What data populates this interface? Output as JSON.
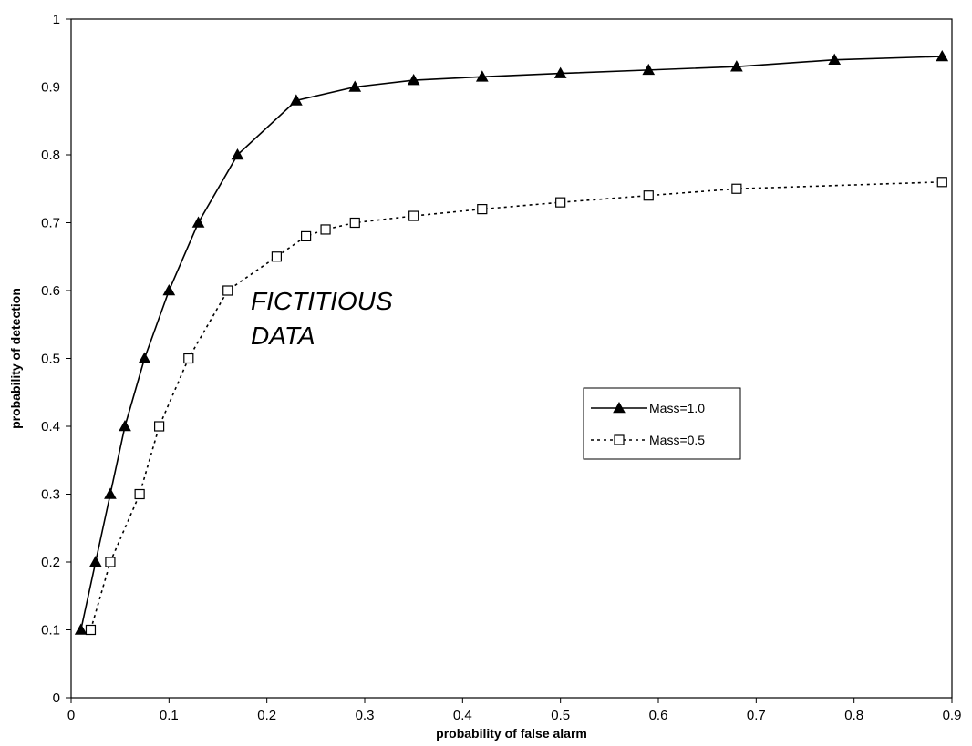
{
  "chart_data": {
    "type": "line",
    "xlabel": "probability of false alarm",
    "ylabel": "probability of detection",
    "xlim": [
      0,
      0.9
    ],
    "ylim": [
      0,
      1
    ],
    "x_ticks": [
      "0",
      "0.1",
      "0.2",
      "0.3",
      "0.4",
      "0.5",
      "0.6",
      "0.7",
      "0.8",
      "0.9"
    ],
    "y_ticks": [
      "0",
      "0.1",
      "0.2",
      "0.3",
      "0.4",
      "0.5",
      "0.6",
      "0.7",
      "0.8",
      "0.9",
      "1"
    ],
    "annotation": [
      "FICTITIOUS",
      "DATA"
    ],
    "legend_position": "right",
    "grid": false,
    "series": [
      {
        "name": "Mass=1.0",
        "marker": "filled-triangle",
        "line_style": "solid",
        "color": "#000000",
        "x": [
          0.01,
          0.025,
          0.04,
          0.055,
          0.075,
          0.1,
          0.13,
          0.17,
          0.23,
          0.29,
          0.35,
          0.42,
          0.5,
          0.59,
          0.68,
          0.78,
          0.89
        ],
        "y": [
          0.1,
          0.2,
          0.3,
          0.4,
          0.5,
          0.6,
          0.7,
          0.8,
          0.88,
          0.9,
          0.91,
          0.915,
          0.92,
          0.925,
          0.93,
          0.94,
          0.945
        ]
      },
      {
        "name": "Mass=0.5",
        "marker": "open-square",
        "line_style": "dotted",
        "color": "#000000",
        "x": [
          0.02,
          0.04,
          0.07,
          0.09,
          0.12,
          0.16,
          0.21,
          0.24,
          0.26,
          0.29,
          0.35,
          0.42,
          0.5,
          0.59,
          0.68,
          0.89
        ],
        "y": [
          0.1,
          0.2,
          0.3,
          0.4,
          0.5,
          0.6,
          0.65,
          0.68,
          0.69,
          0.7,
          0.71,
          0.72,
          0.73,
          0.74,
          0.75,
          0.76
        ]
      }
    ]
  }
}
